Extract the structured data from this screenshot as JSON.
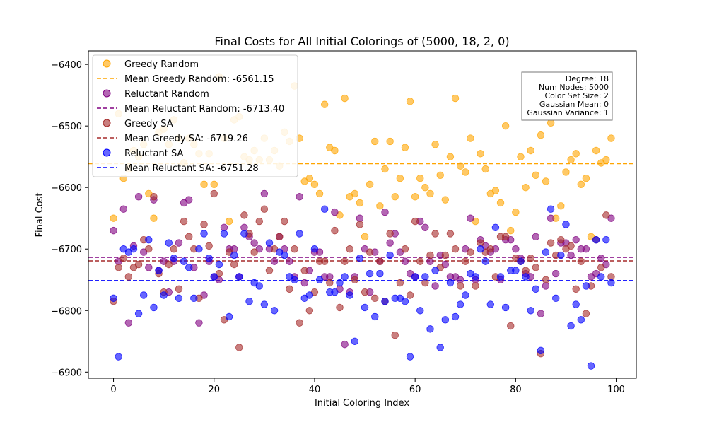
{
  "chart_data": {
    "type": "scatter",
    "title": "Final Costs for All Initial Colorings of (5000, 18, 2, 0)",
    "xlabel": "Initial Coloring Index",
    "ylabel": "Final Cost",
    "xlim": [
      -5,
      104
    ],
    "ylim": [
      -6910,
      -6378
    ],
    "xticks": [
      0,
      20,
      40,
      60,
      80,
      100
    ],
    "yticks": [
      -6900,
      -6800,
      -6700,
      -6600,
      -6500,
      -6400
    ],
    "xtick_labels": [
      "0",
      "20",
      "40",
      "60",
      "80",
      "100"
    ],
    "ytick_labels": [
      "−6900",
      "−6800",
      "−6700",
      "−6600",
      "−6500",
      "−6400"
    ],
    "grid": false,
    "legend_position": "top-left",
    "series": [
      {
        "name": "Greedy Random",
        "color": "#ffa500",
        "mean": -6561.15,
        "mean_label": "Mean Greedy Random: -6561.15",
        "values": [
          -6650,
          -6480,
          -6585,
          -6570,
          -6540,
          -6550,
          -6530,
          -6610,
          -6650,
          -6510,
          -6505,
          -6530,
          -6490,
          -6520,
          -6560,
          -6520,
          -6530,
          -6545,
          -6595,
          -6545,
          -6595,
          -6420,
          -6520,
          -6655,
          -6490,
          -6485,
          -6550,
          -6555,
          -6540,
          -6555,
          -6520,
          -6555,
          -6540,
          -6565,
          -6510,
          -6525,
          -6435,
          -6520,
          -6590,
          -6585,
          -6595,
          -6610,
          -6465,
          -6535,
          -6540,
          -6645,
          -6455,
          -6615,
          -6610,
          -6625,
          -6680,
          -6595,
          -6525,
          -6630,
          -6570,
          -6525,
          -6615,
          -6585,
          -6535,
          -6460,
          -6615,
          -6585,
          -6600,
          -6610,
          -6530,
          -6580,
          -6620,
          -6550,
          -6455,
          -6565,
          -6575,
          -6520,
          -6655,
          -6545,
          -6570,
          -6610,
          -6605,
          -6625,
          -6500,
          -6670,
          -6640,
          -6550,
          -6600,
          -6540,
          -6580,
          -6515,
          -6590,
          -6495,
          -6650,
          -6630,
          -6575,
          -6555,
          -6545,
          -6595,
          -6585,
          -6680,
          -6540,
          -6560,
          -6555,
          -6520
        ]
      },
      {
        "name": "Reluctant Random",
        "color": "#800080",
        "mean": -6713.4,
        "mean_label": "Mean Reluctant Random: -6713.40",
        "values": [
          -6670,
          -6720,
          -6635,
          -6820,
          -6695,
          -6615,
          -6705,
          -6730,
          -6620,
          -6735,
          -6720,
          -6770,
          -6720,
          -6690,
          -6625,
          -6620,
          -6730,
          -6820,
          -6775,
          -6720,
          -6745,
          -6750,
          -6665,
          -6700,
          -6700,
          -6745,
          -6665,
          -6680,
          -6690,
          -6700,
          -6610,
          -6700,
          -6720,
          -6680,
          -6700,
          -6720,
          -6745,
          -6615,
          -6755,
          -6735,
          -6705,
          -6705,
          -6745,
          -6745,
          -6640,
          -6765,
          -6855,
          -6770,
          -6745,
          -6650,
          -6700,
          -6770,
          -6705,
          -6720,
          -6640,
          -6690,
          -6675,
          -6705,
          -6720,
          -6740,
          -6745,
          -6655,
          -6665,
          -6720,
          -6760,
          -6710,
          -6725,
          -6745,
          -6745,
          -6750,
          -6700,
          -6650,
          -6750,
          -6685,
          -6695,
          -6705,
          -6700,
          -6750,
          -6685,
          -6685,
          -6700,
          -6715,
          -6740,
          -6745,
          -6680,
          -6805,
          -6760,
          -6650,
          -6740,
          -6690,
          -6690,
          -6710,
          -6685,
          -6700,
          -6700,
          -6745,
          -6740,
          -6715,
          -6725,
          -6650
        ]
      },
      {
        "name": "Greedy SA",
        "color": "#a52a2a",
        "mean": -6719.26,
        "mean_label": "Mean Greedy SA: -6719.26",
        "values": [
          -6785,
          -6730,
          -6715,
          -6745,
          -6730,
          -6725,
          -6685,
          -6700,
          -6615,
          -6740,
          -6770,
          -6725,
          -6700,
          -6765,
          -6655,
          -6680,
          -6700,
          -6780,
          -6660,
          -6695,
          -6610,
          -6740,
          -6815,
          -6705,
          -6725,
          -6860,
          -6645,
          -6675,
          -6705,
          -6655,
          -6635,
          -6735,
          -6700,
          -6680,
          -6655,
          -6765,
          -6700,
          -6820,
          -6735,
          -6800,
          -6770,
          -6720,
          -6720,
          -6755,
          -6670,
          -6795,
          -6720,
          -6700,
          -6750,
          -6660,
          -6770,
          -6705,
          -6780,
          -6720,
          -6785,
          -6675,
          -6840,
          -6755,
          -6700,
          -6775,
          -6655,
          -6720,
          -6755,
          -6710,
          -6675,
          -6730,
          -6710,
          -6675,
          -6700,
          -6760,
          -6720,
          -6705,
          -6760,
          -6690,
          -6705,
          -6700,
          -6745,
          -6680,
          -6680,
          -6825,
          -6715,
          -6720,
          -6735,
          -6715,
          -6730,
          -6870,
          -6750,
          -6690,
          -6710,
          -6685,
          -6700,
          -6695,
          -6765,
          -6720,
          -6805,
          -6760,
          -6685,
          -6730,
          -6645,
          -6745
        ]
      },
      {
        "name": "Reluctant SA",
        "color": "#0000ff",
        "mean": -6751.28,
        "mean_label": "Mean Reluctant SA: -6751.28",
        "values": [
          -6780,
          -6875,
          -6700,
          -6705,
          -6700,
          -6805,
          -6775,
          -6685,
          -6795,
          -6735,
          -6775,
          -6690,
          -6715,
          -6780,
          -6720,
          -6730,
          -6780,
          -6700,
          -6675,
          -6715,
          -6745,
          -6725,
          -6675,
          -6810,
          -6710,
          -6745,
          -6675,
          -6785,
          -6755,
          -6760,
          -6790,
          -6690,
          -6800,
          -6705,
          -6710,
          -6745,
          -6750,
          -6675,
          -6780,
          -6775,
          -6700,
          -6750,
          -6635,
          -6770,
          -6770,
          -6755,
          -6745,
          -6775,
          -6850,
          -6715,
          -6795,
          -6740,
          -6810,
          -6740,
          -6785,
          -6710,
          -6780,
          -6780,
          -6785,
          -6875,
          -6745,
          -6800,
          -6745,
          -6830,
          -6735,
          -6860,
          -6815,
          -6755,
          -6810,
          -6790,
          -6775,
          -6740,
          -6745,
          -6700,
          -6720,
          -6790,
          -6665,
          -6745,
          -6795,
          -6735,
          -6735,
          -6720,
          -6745,
          -6800,
          -6765,
          -6865,
          -6705,
          -6635,
          -6780,
          -6710,
          -6660,
          -6825,
          -6790,
          -6815,
          -6760,
          -6890,
          -6685,
          -6745,
          -6685,
          -6755
        ]
      }
    ],
    "info_box": [
      "Degree: 18",
      "Num Nodes: 5000",
      "Color Set Size: 2",
      "Gaussian Mean: 0",
      "Gaussian Variance: 1"
    ]
  }
}
